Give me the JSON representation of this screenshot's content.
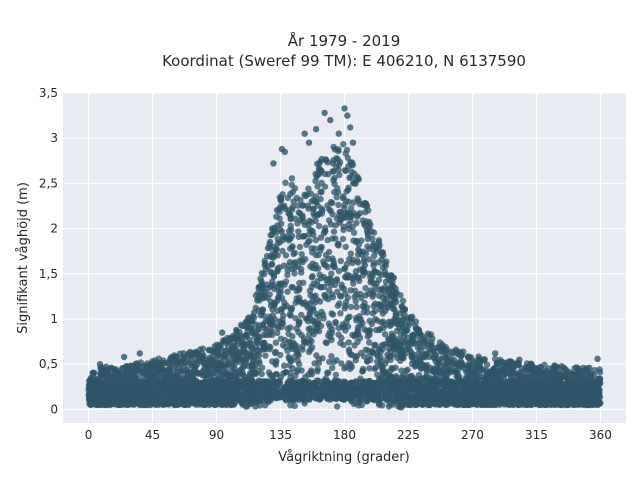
{
  "chart_data": {
    "type": "scatter",
    "title": "År 1979 - 2019",
    "subtitle": "Koordinat (Sweref 99 TM): E 406210, N 6137590",
    "xlabel": "Vågriktning (grader)",
    "ylabel": "Signifikant våghöjd (m)",
    "xlim": [
      -18,
      378
    ],
    "ylim": [
      -0.15,
      3.5
    ],
    "x_ticks": [
      0,
      45,
      90,
      135,
      180,
      225,
      270,
      315,
      360
    ],
    "x_tick_labels": [
      "0",
      "45",
      "90",
      "135",
      "180",
      "225",
      "270",
      "315",
      "360"
    ],
    "y_ticks": [
      0,
      0.5,
      1,
      1.5,
      2,
      2.5,
      3,
      3.5
    ],
    "y_tick_labels": [
      "0",
      "0,5",
      "1",
      "1,5",
      "2",
      "2,5",
      "3",
      "3,5"
    ],
    "grid": true,
    "legend": "none",
    "marker_color": "#2f5568",
    "background_color": "#e9ebf3",
    "envelope": {
      "x": [
        0,
        10,
        20,
        30,
        45,
        60,
        75,
        90,
        100,
        110,
        115,
        120,
        125,
        130,
        135,
        140,
        145,
        150,
        155,
        160,
        165,
        170,
        175,
        180,
        185,
        190,
        195,
        200,
        205,
        210,
        215,
        220,
        225,
        235,
        250,
        270,
        290,
        315,
        340,
        360
      ],
      "y_max": [
        0.42,
        0.48,
        0.45,
        0.52,
        0.55,
        0.6,
        0.66,
        0.72,
        0.82,
        0.98,
        1.15,
        1.4,
        1.72,
        2.1,
        2.45,
        2.65,
        2.5,
        2.35,
        2.5,
        2.7,
        2.85,
        2.95,
        3.0,
        2.95,
        2.75,
        2.55,
        2.3,
        2.05,
        1.85,
        1.65,
        1.45,
        1.25,
        1.08,
        0.9,
        0.72,
        0.6,
        0.55,
        0.5,
        0.48,
        0.45
      ]
    },
    "notable_points": [
      {
        "x": 130,
        "y": 2.72
      },
      {
        "x": 136,
        "y": 2.88
      },
      {
        "x": 138,
        "y": 2.85
      },
      {
        "x": 152,
        "y": 3.05
      },
      {
        "x": 155,
        "y": 2.95
      },
      {
        "x": 160,
        "y": 3.1
      },
      {
        "x": 166,
        "y": 3.28
      },
      {
        "x": 170,
        "y": 3.2
      },
      {
        "x": 176,
        "y": 3.05
      },
      {
        "x": 180,
        "y": 3.33
      },
      {
        "x": 182,
        "y": 3.25
      },
      {
        "x": 184,
        "y": 3.12
      },
      {
        "x": 186,
        "y": 2.95
      },
      {
        "x": 94,
        "y": 0.85
      },
      {
        "x": 104,
        "y": 0.88
      },
      {
        "x": 286,
        "y": 0.62
      },
      {
        "x": 303,
        "y": 0.55
      },
      {
        "x": 358,
        "y": 0.56
      },
      {
        "x": 25,
        "y": 0.58
      },
      {
        "x": 36,
        "y": 0.62
      },
      {
        "x": 8,
        "y": 0.5
      }
    ]
  }
}
